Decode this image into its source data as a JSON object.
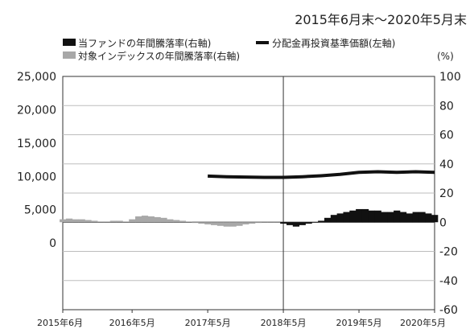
{
  "chart_data": {
    "type": "line",
    "period": "2015年6月末～2020年5月末",
    "legend": [
      {
        "label": "当ファンドの年間騰落率(右軸)",
        "swatch": "bar",
        "color": "#111111"
      },
      {
        "label": "分配金再投資基準価額(左軸)",
        "swatch": "line",
        "color": "#111111"
      },
      {
        "label": "対象インデックスの年間騰落率(右軸)",
        "swatch": "bar",
        "color": "#a8a8a8"
      }
    ],
    "right_axis_unit": "(%)",
    "left_axis": {
      "min": -10000,
      "max": 25000,
      "ticks": [
        25000,
        20000,
        15000,
        10000,
        5000,
        0
      ],
      "tick_labels": [
        "25,000",
        "20,000",
        "15,000",
        "10,000",
        "5,000",
        "0"
      ]
    },
    "right_axis": {
      "min": -60,
      "max": 100,
      "ticks": [
        100,
        80,
        60,
        40,
        20,
        0,
        -20,
        -40,
        -60
      ],
      "tick_labels": [
        "100",
        "80",
        "60",
        "40",
        "20",
        "0",
        "-20",
        "-40",
        "-60"
      ]
    },
    "x_labels": [
      "2015年6月",
      "2016年5月",
      "2017年5月",
      "2018年5月",
      "2019年5月",
      "2020年5月"
    ],
    "x_label_months": [
      0,
      11,
      23,
      35,
      47,
      59
    ],
    "inception_month": 35,
    "series": [
      {
        "kind": "nav",
        "axis": "left",
        "color": "#111111",
        "x": [
          23,
          26,
          29,
          32,
          35,
          38,
          41,
          44,
          47,
          50,
          53,
          56,
          59
        ],
        "values": [
          10050,
          9950,
          9900,
          9850,
          9850,
          9950,
          10100,
          10300,
          10600,
          10700,
          10600,
          10700,
          10600
        ]
      },
      {
        "kind": "bar",
        "axis": "right",
        "color": "#111111",
        "x": [
          35,
          36,
          37,
          38,
          39,
          40,
          41,
          42,
          43,
          44,
          45,
          46,
          47,
          48,
          49,
          50,
          51,
          52,
          53,
          54,
          55,
          56,
          57,
          58,
          59
        ],
        "values": [
          -1,
          -2,
          -3,
          -2,
          -1,
          0,
          1,
          3,
          5,
          6,
          7,
          8,
          9,
          9,
          8,
          8,
          7,
          7,
          8,
          7,
          6,
          7,
          7,
          6,
          5
        ]
      },
      {
        "kind": "bar",
        "axis": "right",
        "color": "#a8a8a8",
        "x": [
          0,
          1,
          2,
          3,
          4,
          5,
          6,
          7,
          8,
          9,
          10,
          11,
          12,
          13,
          14,
          15,
          16,
          17,
          18,
          19,
          20,
          21,
          22,
          23,
          24,
          25,
          26,
          27,
          28,
          29,
          30,
          31,
          32,
          33,
          34
        ],
        "values": [
          2,
          2.5,
          2,
          2,
          1.5,
          1,
          0.5,
          0.5,
          1,
          1,
          0.5,
          2,
          4,
          4.5,
          4,
          3.5,
          3,
          2,
          1.5,
          1,
          0.5,
          -0.5,
          -1,
          -1.5,
          -2,
          -2.5,
          -3,
          -3,
          -2.5,
          -1.5,
          -1,
          -0.5,
          0,
          0,
          0
        ]
      }
    ]
  }
}
